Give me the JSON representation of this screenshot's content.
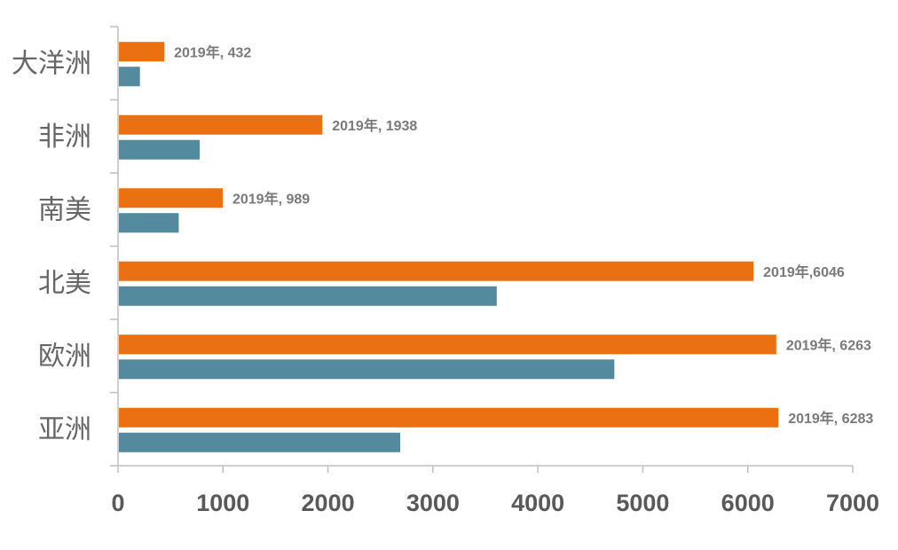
{
  "chart_data": {
    "type": "bar",
    "orientation": "horizontal",
    "categories": [
      "大洋洲",
      "非洲",
      "南美",
      "北美",
      "欧洲",
      "亚洲"
    ],
    "series": [
      {
        "color": "#ea7012",
        "values": [
          432,
          1938,
          989,
          6046,
          6263,
          6283
        ],
        "data_labels": [
          "2019年, 432",
          "2019年, 1938",
          "2019年, 989",
          "2019年,6046",
          "2019年, 6263",
          "2019年, 6283"
        ]
      },
      {
        "color": "#548a9e",
        "values": [
          200,
          770,
          570,
          3600,
          4720,
          2680
        ]
      }
    ],
    "xlim": [
      0,
      7000
    ],
    "xticks": [
      "0",
      "1000",
      "2000",
      "3000",
      "4000",
      "5000",
      "6000",
      "7000"
    ],
    "grid": false,
    "legend": "none"
  }
}
